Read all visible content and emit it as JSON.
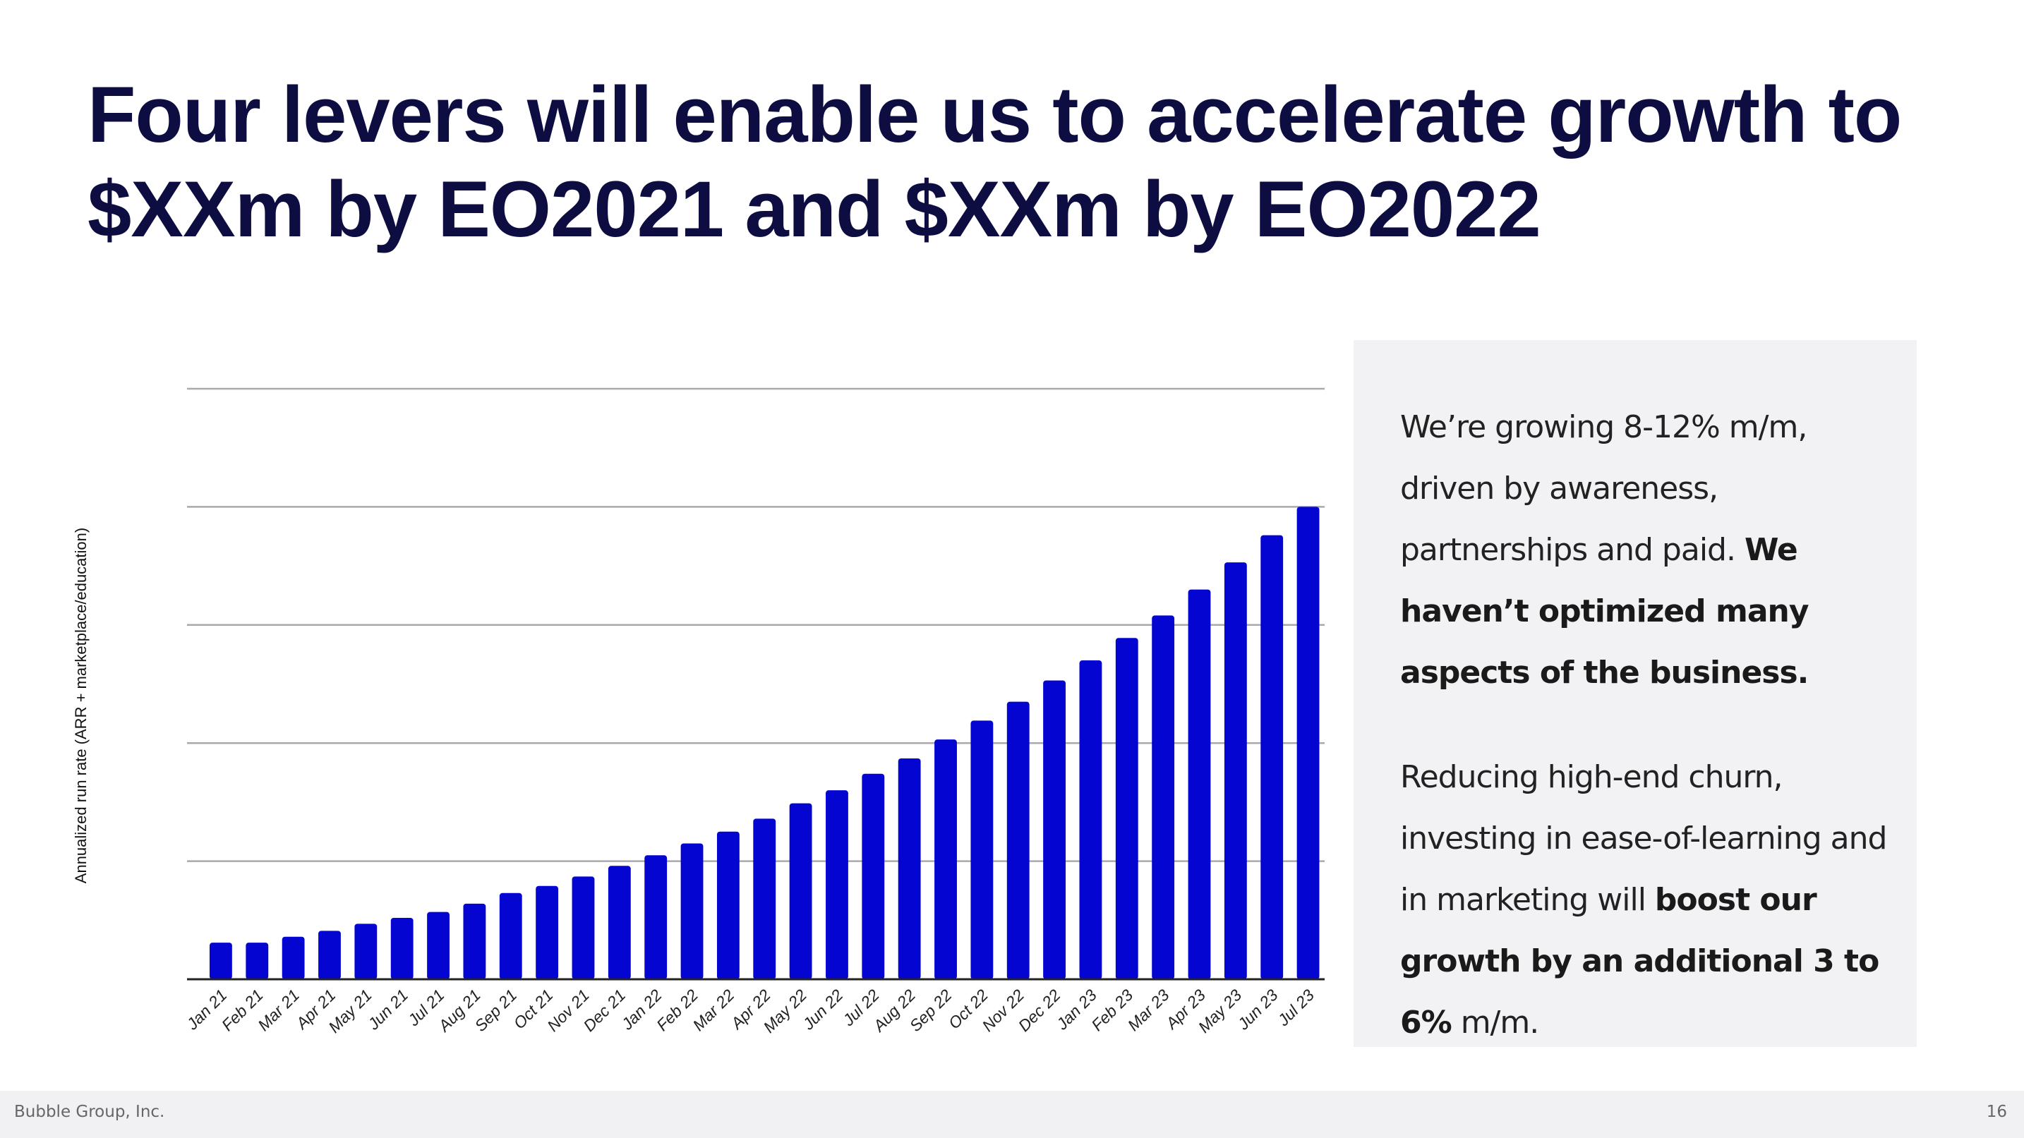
{
  "slide": {
    "title_lines": [
      "Four levers will enable us to accelerate growth to",
      "$XXm by EO2021 and $XXm by EO2022"
    ]
  },
  "panel": {
    "paragraph1": {
      "normal": "We’re growing 8-12% m/m, driven by awareness, partnerships and paid. ",
      "bold": "We haven’t optimized many aspects of the business."
    },
    "paragraph2": {
      "normal_start": "Reducing high-end churn, investing in ease-of-learning and in marketing will ",
      "bold": "boost our growth by an additional 3 to 6%",
      "normal_end": " m/m."
    }
  },
  "footer": {
    "company": "Bubble Group, Inc.",
    "page_number": "16"
  },
  "colors": {
    "bar": "#0505d2",
    "title": "#0d0d42",
    "panel_bg": "#f2f2f4"
  },
  "chart_data": {
    "type": "bar",
    "title": "",
    "xlabel": "",
    "ylabel": "Annualized run rate (ARR + marketplace/education)",
    "y_units_note": "values in gridline units (axis unlabeled)",
    "ylim": [
      0,
      5
    ],
    "yticks": [
      0,
      1,
      2,
      3,
      4,
      5
    ],
    "ytick_labels_visible": false,
    "grid": true,
    "legend": "none",
    "categories": [
      "Jan 21",
      "Feb 21",
      "Mar 21",
      "Apr 21",
      "May 21",
      "Jun 21",
      "Jul 21",
      "Aug 21",
      "Sep 21",
      "Oct 21",
      "Nov 21",
      "Dec 21",
      "Jan 22",
      "Feb 22",
      "Mar 22",
      "Apr 22",
      "May 22",
      "Jun 22",
      "Jul 22",
      "Aug 22",
      "Sep 22",
      "Oct 22",
      "Nov 22",
      "Dec 22",
      "Jan 23",
      "Feb 23",
      "Mar 23",
      "Apr 23",
      "May 23",
      "Jun 23",
      "Jul 23"
    ],
    "values": [
      0.31,
      0.31,
      0.36,
      0.41,
      0.47,
      0.52,
      0.57,
      0.64,
      0.73,
      0.79,
      0.87,
      0.96,
      1.05,
      1.15,
      1.25,
      1.36,
      1.49,
      1.6,
      1.74,
      1.87,
      2.03,
      2.19,
      2.35,
      2.53,
      2.7,
      2.89,
      3.08,
      3.3,
      3.53,
      3.76,
      4.0
    ]
  }
}
